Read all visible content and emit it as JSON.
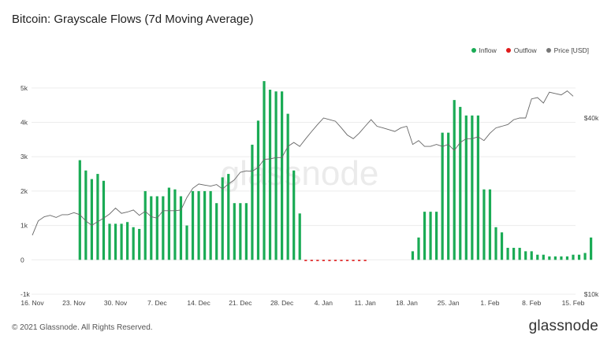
{
  "title": "Bitcoin: Grayscale Flows (7d Moving Average)",
  "legend": {
    "inflow": "Inflow",
    "outflow": "Outflow",
    "price": "Price [USD]"
  },
  "colors": {
    "inflow": "#1aab55",
    "outflow": "#e01b1b",
    "price": "#666666",
    "grid": "#ececec",
    "watermark": "#ebebeb"
  },
  "watermark": "glassnode",
  "footer": "© 2021 Glassnode. All Rights Reserved.",
  "brand": "glassnode",
  "chart_data": {
    "type": "bar",
    "title": "Bitcoin: Grayscale Flows (7d Moving Average)",
    "x_ticks": [
      "16. Nov",
      "23. Nov",
      "30. Nov",
      "7. Dec",
      "14. Dec",
      "21. Dec",
      "28. Dec",
      "4. Jan",
      "11. Jan",
      "18. Jan",
      "25. Jan",
      "1. Feb",
      "8. Feb",
      "15. Feb"
    ],
    "x_start_day": 0,
    "x_end_day": 91,
    "y_left": {
      "min": -1000,
      "max": 5500,
      "ticks": [
        -1000,
        0,
        1000,
        2000,
        3000,
        4000,
        5000
      ],
      "tick_labels": [
        "-1k",
        "0",
        "1k",
        "2k",
        "3k",
        "4k",
        "5k"
      ]
    },
    "y_right": {
      "scale": "log",
      "min": 10000,
      "max": 58000,
      "tick_values": [
        10000,
        40000
      ],
      "tick_labels": [
        "$10k",
        "$40k"
      ]
    },
    "inflow": {
      "start_day": 8,
      "values": [
        2900,
        2600,
        2350,
        2500,
        2300,
        1050,
        1050,
        1050,
        1100,
        950,
        900,
        2000,
        1850,
        1850,
        1850,
        2100,
        2050,
        1850,
        1000,
        2000,
        2000,
        2000,
        2000,
        1650,
        2400,
        2500,
        1650,
        1650,
        1650,
        3350,
        4050,
        5200,
        4950,
        4900,
        4900,
        4250,
        2600,
        1350,
        0,
        0,
        0,
        0,
        0,
        0,
        0,
        0,
        0,
        0,
        0,
        0,
        0,
        0,
        0,
        0,
        0,
        0,
        250,
        650,
        1400,
        1400,
        1400,
        3700,
        3700,
        4650,
        4450,
        4200,
        4200,
        4200,
        2050,
        2050,
        950,
        800,
        350,
        350,
        350,
        250,
        250,
        150,
        150,
        100,
        100,
        100,
        100,
        150,
        150,
        200,
        650
      ]
    },
    "outflow": {
      "start_day": 46,
      "end_day": 56,
      "value": -20
    },
    "price": {
      "start_day": 0,
      "values": [
        15900,
        17800,
        18400,
        18600,
        18300,
        18700,
        18700,
        19000,
        18700,
        17800,
        17200,
        17700,
        18200,
        18800,
        19700,
        18900,
        19100,
        19400,
        18600,
        19200,
        18400,
        18200,
        19300,
        19300,
        19300,
        19400,
        21400,
        23000,
        23800,
        23600,
        23400,
        23700,
        22900,
        23800,
        24600,
        26100,
        26400,
        26300,
        27100,
        28900,
        29000,
        29300,
        29300,
        32000,
        33000,
        32000,
        34000,
        36000,
        38000,
        40000,
        39500,
        39000,
        37000,
        35000,
        34000,
        35500,
        37500,
        39500,
        37500,
        37000,
        36500,
        36000,
        37000,
        37500,
        32500,
        33500,
        32000,
        32000,
        32500,
        32000,
        32500,
        31000,
        33000,
        34000,
        34000,
        34500,
        33500,
        35500,
        37000,
        37500,
        38000,
        39500,
        40000,
        40000,
        46500,
        47000,
        45000,
        49000,
        48500,
        48000,
        49500,
        47500
      ]
    }
  }
}
